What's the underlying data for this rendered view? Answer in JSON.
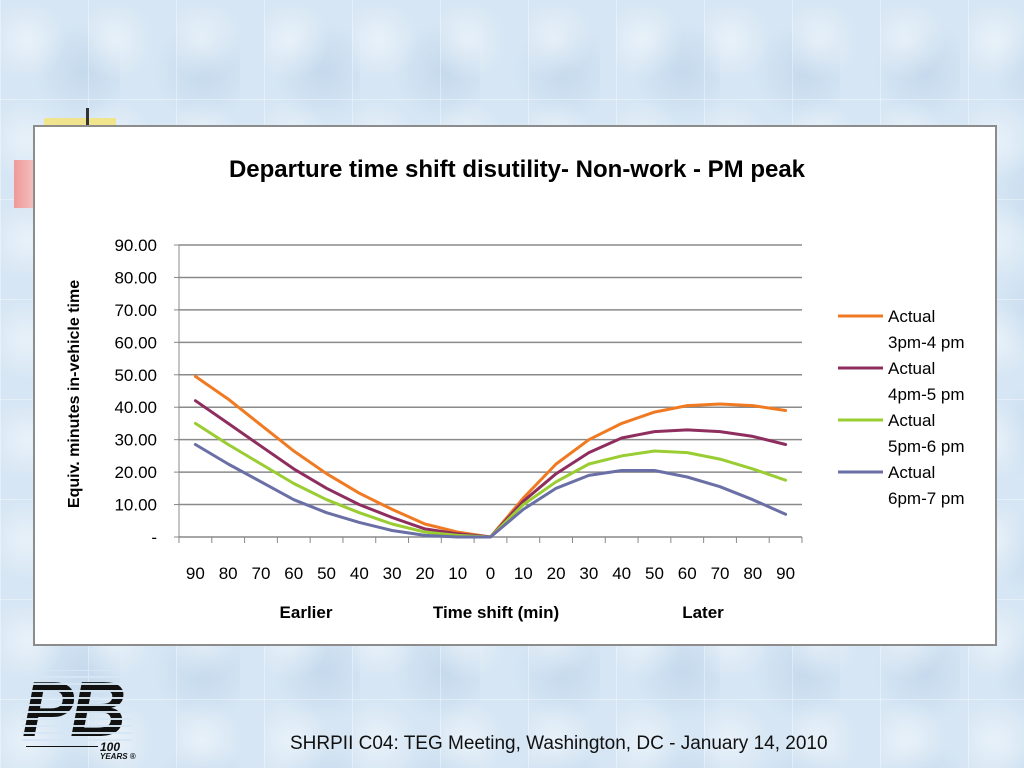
{
  "chart_data": {
    "type": "line",
    "title": "Departure time shift disutility- Non-work - PM peak",
    "ylabel": "Equiv. minutes in-vehicle time",
    "xlabel": "Time shift (min)",
    "xlabel_left": "Earlier",
    "xlabel_right": "Later",
    "categories": [
      "90",
      "80",
      "70",
      "60",
      "50",
      "40",
      "30",
      "20",
      "10",
      "0",
      "10",
      "20",
      "30",
      "40",
      "50",
      "60",
      "70",
      "80",
      "90"
    ],
    "y_ticks": [
      "-",
      "10.00",
      "20.00",
      "30.00",
      "40.00",
      "50.00",
      "60.00",
      "70.00",
      "80.00",
      "90.00"
    ],
    "ylim": [
      0,
      90
    ],
    "grid": true,
    "legend_position": "right",
    "series": [
      {
        "name": "Actual 3pm-4 pm",
        "legend_lines": [
          "Actual",
          "3pm-4 pm"
        ],
        "color": "#f07a22",
        "values": [
          49.5,
          42.5,
          34.5,
          26.5,
          19.5,
          13.5,
          8.5,
          4.0,
          1.5,
          0,
          12.0,
          22.5,
          30.0,
          35.0,
          38.5,
          40.5,
          41.0,
          40.5,
          39.0
        ]
      },
      {
        "name": "Actual 4pm-5 pm",
        "legend_lines": [
          "Actual",
          "4pm-5 pm"
        ],
        "color": "#8e2e5e",
        "values": [
          42.0,
          35.0,
          28.0,
          21.0,
          15.0,
          10.0,
          6.0,
          2.5,
          1.0,
          0,
          11.0,
          19.5,
          26.0,
          30.5,
          32.5,
          33.0,
          32.5,
          31.0,
          28.5
        ]
      },
      {
        "name": "Actual 5pm-6 pm",
        "legend_lines": [
          "Actual",
          "5pm-6 pm"
        ],
        "color": "#9acd32",
        "values": [
          35.0,
          28.5,
          22.5,
          16.5,
          11.5,
          7.5,
          4.0,
          1.5,
          0.5,
          0,
          10.0,
          17.0,
          22.5,
          25.0,
          26.5,
          26.0,
          24.0,
          21.0,
          17.5
        ]
      },
      {
        "name": "Actual 6pm-7 pm",
        "legend_lines": [
          "Actual",
          "6pm-7 pm"
        ],
        "color": "#6a6fa6",
        "values": [
          28.5,
          22.5,
          17.0,
          11.5,
          7.5,
          4.5,
          2.0,
          0.5,
          0,
          0,
          8.5,
          15.0,
          19.0,
          20.5,
          20.5,
          18.5,
          15.5,
          11.5,
          7.0
        ]
      }
    ]
  },
  "footer": {
    "text": "SHRPII C04: TEG Meeting, Washington, DC - January 14, 2010"
  },
  "logo": {
    "letters": "PB",
    "hundred": "100",
    "years": "YEARS ®"
  }
}
